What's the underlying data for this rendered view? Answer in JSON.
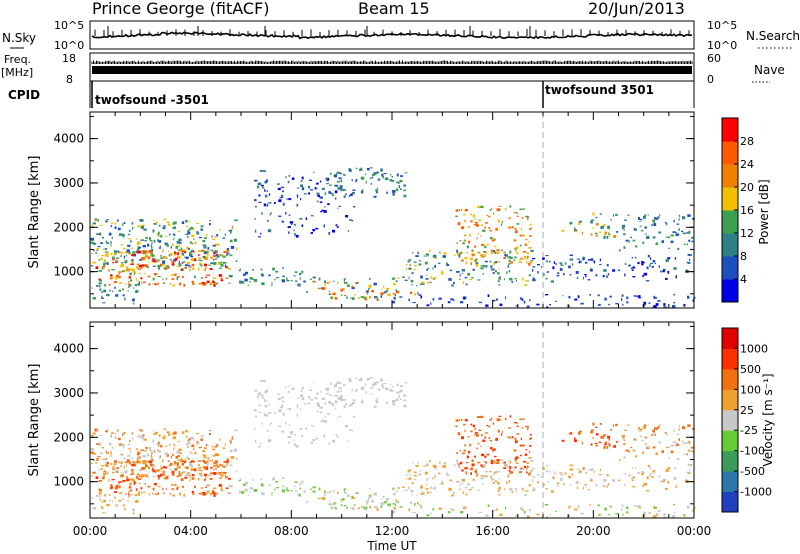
{
  "header": {
    "station": "Prince George (fitACF)",
    "beam": "Beam 15",
    "date": "20/Jun/2013"
  },
  "summary_panels": {
    "nsky_label": "N.Sky",
    "nsky_ticks": [
      "10^5",
      "10^0"
    ],
    "nsearch_label": "N.Search",
    "nsearch_ticks": [
      "10^5",
      "10^0"
    ],
    "freq_label_1": "Freq.",
    "freq_label_2": "[MHz]",
    "freq_ticks": [
      "18",
      "8"
    ],
    "nave_label": "Nave",
    "nave_ticks": [
      "60",
      "0"
    ],
    "cpid_label": "CPID",
    "cpid_segments": [
      {
        "start_hour": 0,
        "label": "twofsound -3501"
      },
      {
        "start_hour": 18,
        "label": "twofsound 3501"
      }
    ]
  },
  "chart_data": [
    {
      "type": "heatmap",
      "title": "",
      "xlabel": "",
      "ylabel": "Slant Range [km]",
      "xlim_hours": [
        0,
        24
      ],
      "ylim": [
        180,
        4600
      ],
      "yticks": [
        "4000",
        "3000",
        "2000",
        "1000"
      ],
      "colorbar": {
        "label": "Power [dB]",
        "ticks": [
          "28",
          "24",
          "20",
          "16",
          "12",
          "8",
          "4"
        ],
        "colors": [
          "#0000e6",
          "#1e4fbe",
          "#2f7f86",
          "#3aa050",
          "#f0c000",
          "#f08000",
          "#ff5a00",
          "#ff0000"
        ]
      }
    },
    {
      "type": "heatmap",
      "title": "",
      "xlabel": "Time UT",
      "ylabel": "Slant Range [km]",
      "xlim_hours": [
        0,
        24
      ],
      "ylim": [
        180,
        4600
      ],
      "yticks": [
        "4000",
        "3000",
        "2000",
        "1000"
      ],
      "xticks": [
        "00:00",
        "04:00",
        "08:00",
        "12:00",
        "16:00",
        "20:00",
        "00:00"
      ],
      "colorbar": {
        "label": "Velocity [m s⁻¹]",
        "ticks": [
          "1000",
          "500",
          "100",
          "25",
          "-25",
          "-100",
          "-500",
          "-1000"
        ],
        "colors": [
          "#1f3fbf",
          "#2a78a8",
          "#3c9a5a",
          "#66cc33",
          "#c8c8c8",
          "#f0a030",
          "#f07010",
          "#ff3000",
          "#e00000"
        ]
      }
    }
  ]
}
